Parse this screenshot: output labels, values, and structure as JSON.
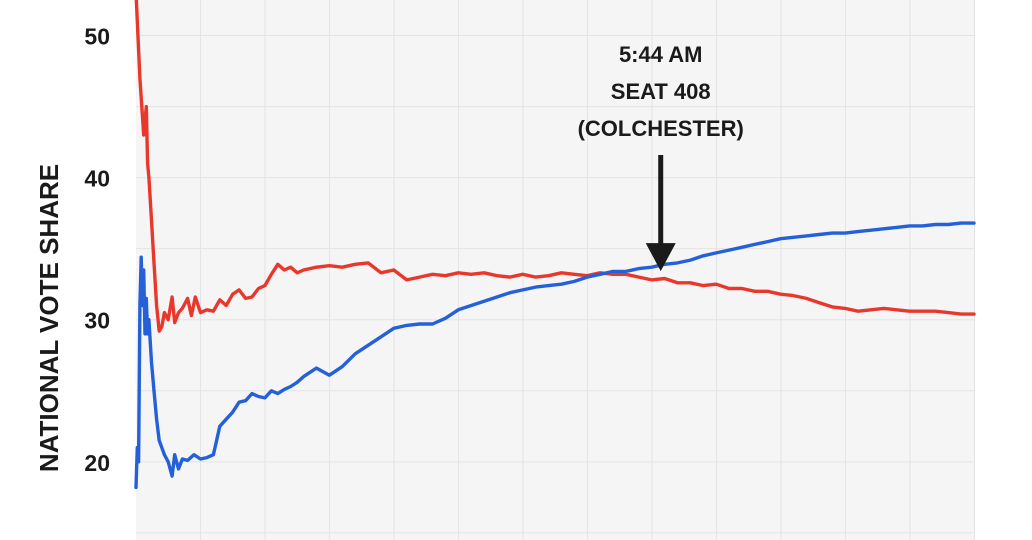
{
  "chart_data": {
    "type": "line",
    "title": "",
    "xlabel": "",
    "ylabel": "NATIONAL VOTE SHARE",
    "y_ticks": [
      "20",
      "30",
      "40",
      "50"
    ],
    "ylim": [
      14.5,
      52.5
    ],
    "xlim": [
      0,
      650
    ],
    "grid": true,
    "colors": {
      "series_1": "#e8382c",
      "series_2": "#2461d8",
      "annotation": "#1a1a1a",
      "plot_bg": "#f5f5f5",
      "grid": "#e4e4e4"
    },
    "series": [
      {
        "name": "",
        "color": "#e8382c",
        "x": [
          0,
          3,
          6,
          8,
          9,
          10,
          12,
          14,
          16,
          18,
          20,
          22,
          25,
          28,
          30,
          33,
          36,
          40,
          43,
          46,
          50,
          55,
          60,
          65,
          70,
          75,
          80,
          85,
          90,
          95,
          100,
          105,
          110,
          115,
          120,
          125,
          130,
          140,
          150,
          160,
          170,
          180,
          190,
          200,
          210,
          220,
          230,
          240,
          250,
          260,
          270,
          280,
          290,
          300,
          310,
          320,
          330,
          340,
          350,
          360,
          370,
          380,
          390,
          400,
          410,
          420,
          430,
          440,
          450,
          460,
          470,
          480,
          490,
          500,
          510,
          520,
          530,
          540,
          550,
          560,
          570,
          580,
          590,
          600,
          610,
          620,
          630,
          640,
          650
        ],
        "values": [
          53,
          47,
          43,
          45,
          41,
          40,
          37,
          34,
          31,
          29.2,
          29.5,
          30.5,
          30,
          31.6,
          29.8,
          30.5,
          30.8,
          31.5,
          30.3,
          31.6,
          30.5,
          30.7,
          30.6,
          31.4,
          31,
          31.8,
          32.1,
          31.5,
          31.6,
          32.2,
          32.4,
          33.2,
          33.9,
          33.5,
          33.7,
          33.3,
          33.5,
          33.7,
          33.8,
          33.7,
          33.9,
          34,
          33.3,
          33.5,
          32.8,
          33,
          33.2,
          33.1,
          33.3,
          33.2,
          33.3,
          33.1,
          33,
          33.2,
          33,
          33.1,
          33.3,
          33.2,
          33.1,
          33.3,
          33.2,
          33.2,
          33,
          32.8,
          32.9,
          32.6,
          32.6,
          32.4,
          32.5,
          32.2,
          32.2,
          32,
          32,
          31.8,
          31.7,
          31.5,
          31.2,
          30.9,
          30.8,
          30.6,
          30.7,
          30.8,
          30.7,
          30.6,
          30.6,
          30.6,
          30.5,
          30.4,
          30.4
        ]
      },
      {
        "name": "",
        "color": "#2461d8",
        "x": [
          0,
          1,
          2,
          3,
          4,
          5,
          6,
          7,
          8,
          9,
          10,
          12,
          14,
          16,
          18,
          20,
          22,
          25,
          28,
          30,
          33,
          36,
          40,
          45,
          50,
          55,
          60,
          65,
          70,
          75,
          80,
          85,
          90,
          95,
          100,
          105,
          110,
          115,
          120,
          125,
          130,
          140,
          150,
          160,
          170,
          180,
          190,
          200,
          210,
          220,
          230,
          240,
          250,
          260,
          270,
          280,
          290,
          300,
          310,
          320,
          330,
          340,
          350,
          360,
          370,
          380,
          390,
          400,
          410,
          420,
          430,
          440,
          450,
          460,
          470,
          480,
          490,
          500,
          510,
          520,
          530,
          540,
          550,
          560,
          570,
          580,
          590,
          600,
          610,
          620,
          630,
          640,
          650
        ],
        "values": [
          18.2,
          21,
          20,
          31,
          34.4,
          31,
          33.5,
          29,
          31.5,
          29,
          30,
          27,
          25,
          23,
          21.5,
          21,
          20.5,
          20,
          19,
          20.5,
          19.5,
          20.2,
          20.1,
          20.5,
          20.2,
          20.3,
          20.5,
          22.5,
          23,
          23.5,
          24.2,
          24.3,
          24.8,
          24.6,
          24.5,
          25,
          24.8,
          25.1,
          25.3,
          25.6,
          26,
          26.6,
          26.1,
          26.7,
          27.6,
          28.2,
          28.8,
          29.4,
          29.6,
          29.7,
          29.7,
          30.1,
          30.7,
          31,
          31.3,
          31.6,
          31.9,
          32.1,
          32.3,
          32.4,
          32.5,
          32.7,
          33,
          33.2,
          33.4,
          33.4,
          33.6,
          33.7,
          33.9,
          34,
          34.2,
          34.5,
          34.7,
          34.9,
          35.1,
          35.3,
          35.5,
          35.7,
          35.8,
          35.9,
          36,
          36.1,
          36.1,
          36.2,
          36.3,
          36.4,
          36.5,
          36.6,
          36.6,
          36.7,
          36.7,
          36.8,
          36.8
        ]
      }
    ],
    "annotation": {
      "lines": [
        "5:44 AM",
        "SEAT 408",
        "(COLCHESTER)"
      ],
      "x": 407,
      "y": 33
    }
  }
}
